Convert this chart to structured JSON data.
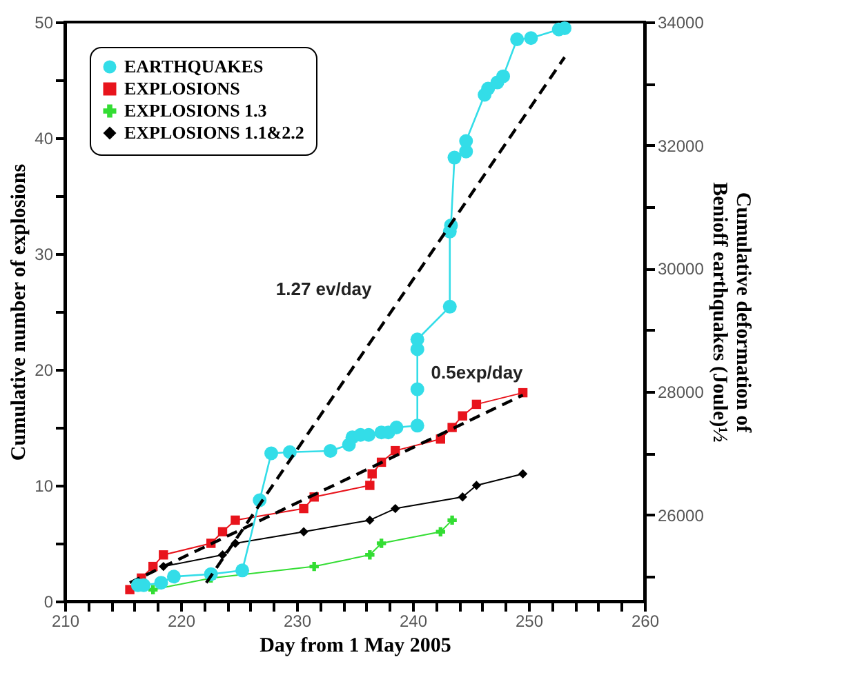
{
  "chart_data": {
    "type": "line",
    "xlabel": "Day from 1 May 2005",
    "ylabel": "Cumulative number of explosions",
    "y2label": "Cumulative deformation of\nBenioff earthquakes (Joule)½",
    "xlim": [
      210,
      260
    ],
    "xticks": [
      210,
      {
        "value": 212,
        "label": null
      },
      {
        "value": 214,
        "label": null
      },
      {
        "value": 216,
        "label": null
      },
      {
        "value": 218,
        "label": null
      },
      220,
      {
        "value": 222,
        "label": null
      },
      {
        "value": 224,
        "label": null
      },
      {
        "value": 226,
        "label": null
      },
      {
        "value": 228,
        "label": null
      },
      230,
      {
        "value": 232,
        "label": null
      },
      {
        "value": 234,
        "label": null
      },
      {
        "value": 236,
        "label": null
      },
      {
        "value": 238,
        "label": null
      },
      240,
      {
        "value": 242,
        "label": null
      },
      {
        "value": 244,
        "label": null
      },
      {
        "value": 246,
        "label": null
      },
      {
        "value": 248,
        "label": null
      },
      250,
      {
        "value": 252,
        "label": null
      },
      {
        "value": 254,
        "label": null
      },
      {
        "value": 256,
        "label": null
      },
      {
        "value": 258,
        "label": null
      },
      260
    ],
    "ylim": [
      0,
      50
    ],
    "yticks": [
      0,
      {
        "value": 5,
        "label": null
      },
      10,
      {
        "value": 15,
        "label": null
      },
      20,
      {
        "value": 25,
        "label": null
      },
      30,
      {
        "value": 35,
        "label": null
      },
      40,
      {
        "value": 45,
        "label": null
      },
      50
    ],
    "y2lim": [
      24600,
      34000
    ],
    "y2ticks": [
      {
        "value": 25000,
        "label": null
      },
      26000,
      {
        "value": 27000,
        "label": null
      },
      28000,
      {
        "value": 29000,
        "label": null
      },
      30000,
      {
        "value": 31000,
        "label": null
      },
      32000,
      {
        "value": 33000,
        "label": null
      },
      34000
    ],
    "grid": false,
    "legend": "top left",
    "line_style": "solid",
    "series": [
      {
        "name": "EARTHQUAKES",
        "axis": "y2",
        "marker": "circle",
        "color": "#33dde8",
        "x": [
          216.3,
          216.8,
          218.3,
          219.4,
          222.6,
          225.3,
          226.8,
          227.8,
          229.4,
          232.9,
          234.5,
          234.8,
          235.5,
          236.2,
          237.3,
          237.9,
          238.6,
          240.4,
          240.4,
          240.4,
          240.4,
          243.2,
          243.2,
          243.3,
          243.6,
          244.6,
          244.6,
          246.2,
          246.5,
          247.3,
          247.8,
          249.0,
          250.2,
          252.6,
          253.1
        ],
        "values": [
          24860,
          24860,
          24900,
          25000,
          25040,
          25100,
          26240,
          27000,
          27020,
          27040,
          27140,
          27260,
          27300,
          27300,
          27340,
          27340,
          27420,
          27450,
          28040,
          28690,
          28850,
          29380,
          30600,
          30700,
          31800,
          31900,
          32070,
          32820,
          32920,
          33020,
          33120,
          33720,
          33740,
          33880,
          33900
        ]
      },
      {
        "name": "EXPLOSIONS",
        "marker": "square",
        "color": "#e8141c",
        "x": [
          215.6,
          216.6,
          217.6,
          218.5,
          222.6,
          223.6,
          224.7,
          230.6,
          231.5,
          236.3,
          236.5,
          237.3,
          238.5,
          242.4,
          243.4,
          244.3,
          245.5,
          249.5
        ],
        "values": [
          1,
          2,
          3,
          4,
          5,
          6,
          7,
          8,
          9,
          10,
          11,
          12,
          13,
          14,
          15,
          16,
          17,
          18
        ]
      },
      {
        "name": "EXPLOSIONS 1.3",
        "marker": "cross",
        "color": "#33dd33",
        "x": [
          217.6,
          222.6,
          231.5,
          236.3,
          237.3,
          242.4,
          243.4
        ],
        "values": [
          1,
          2,
          3,
          4,
          5,
          6,
          7
        ]
      },
      {
        "name": "EXPLOSIONS 1.1&2.2",
        "marker": "diamond",
        "color": "#000000",
        "x": [
          218.5,
          223.6,
          224.7,
          230.6,
          236.3,
          238.5,
          244.3,
          245.5,
          249.5
        ],
        "values": [
          3,
          4,
          5,
          6,
          7,
          8,
          9,
          10,
          11
        ]
      },
      {
        "name": "1.27 ev/day",
        "axis": "y2",
        "marker": "none",
        "line_style": "dashed",
        "color": "#000000",
        "x": [
          222.2,
          253.1
        ],
        "values": [
          24900,
          33430
        ]
      },
      {
        "name": "0.5exp/day",
        "marker": "none",
        "line_style": "dashed",
        "color": "#000000",
        "x": [
          215.6,
          249.5
        ],
        "values": [
          1.6,
          17.8
        ]
      }
    ]
  }
}
